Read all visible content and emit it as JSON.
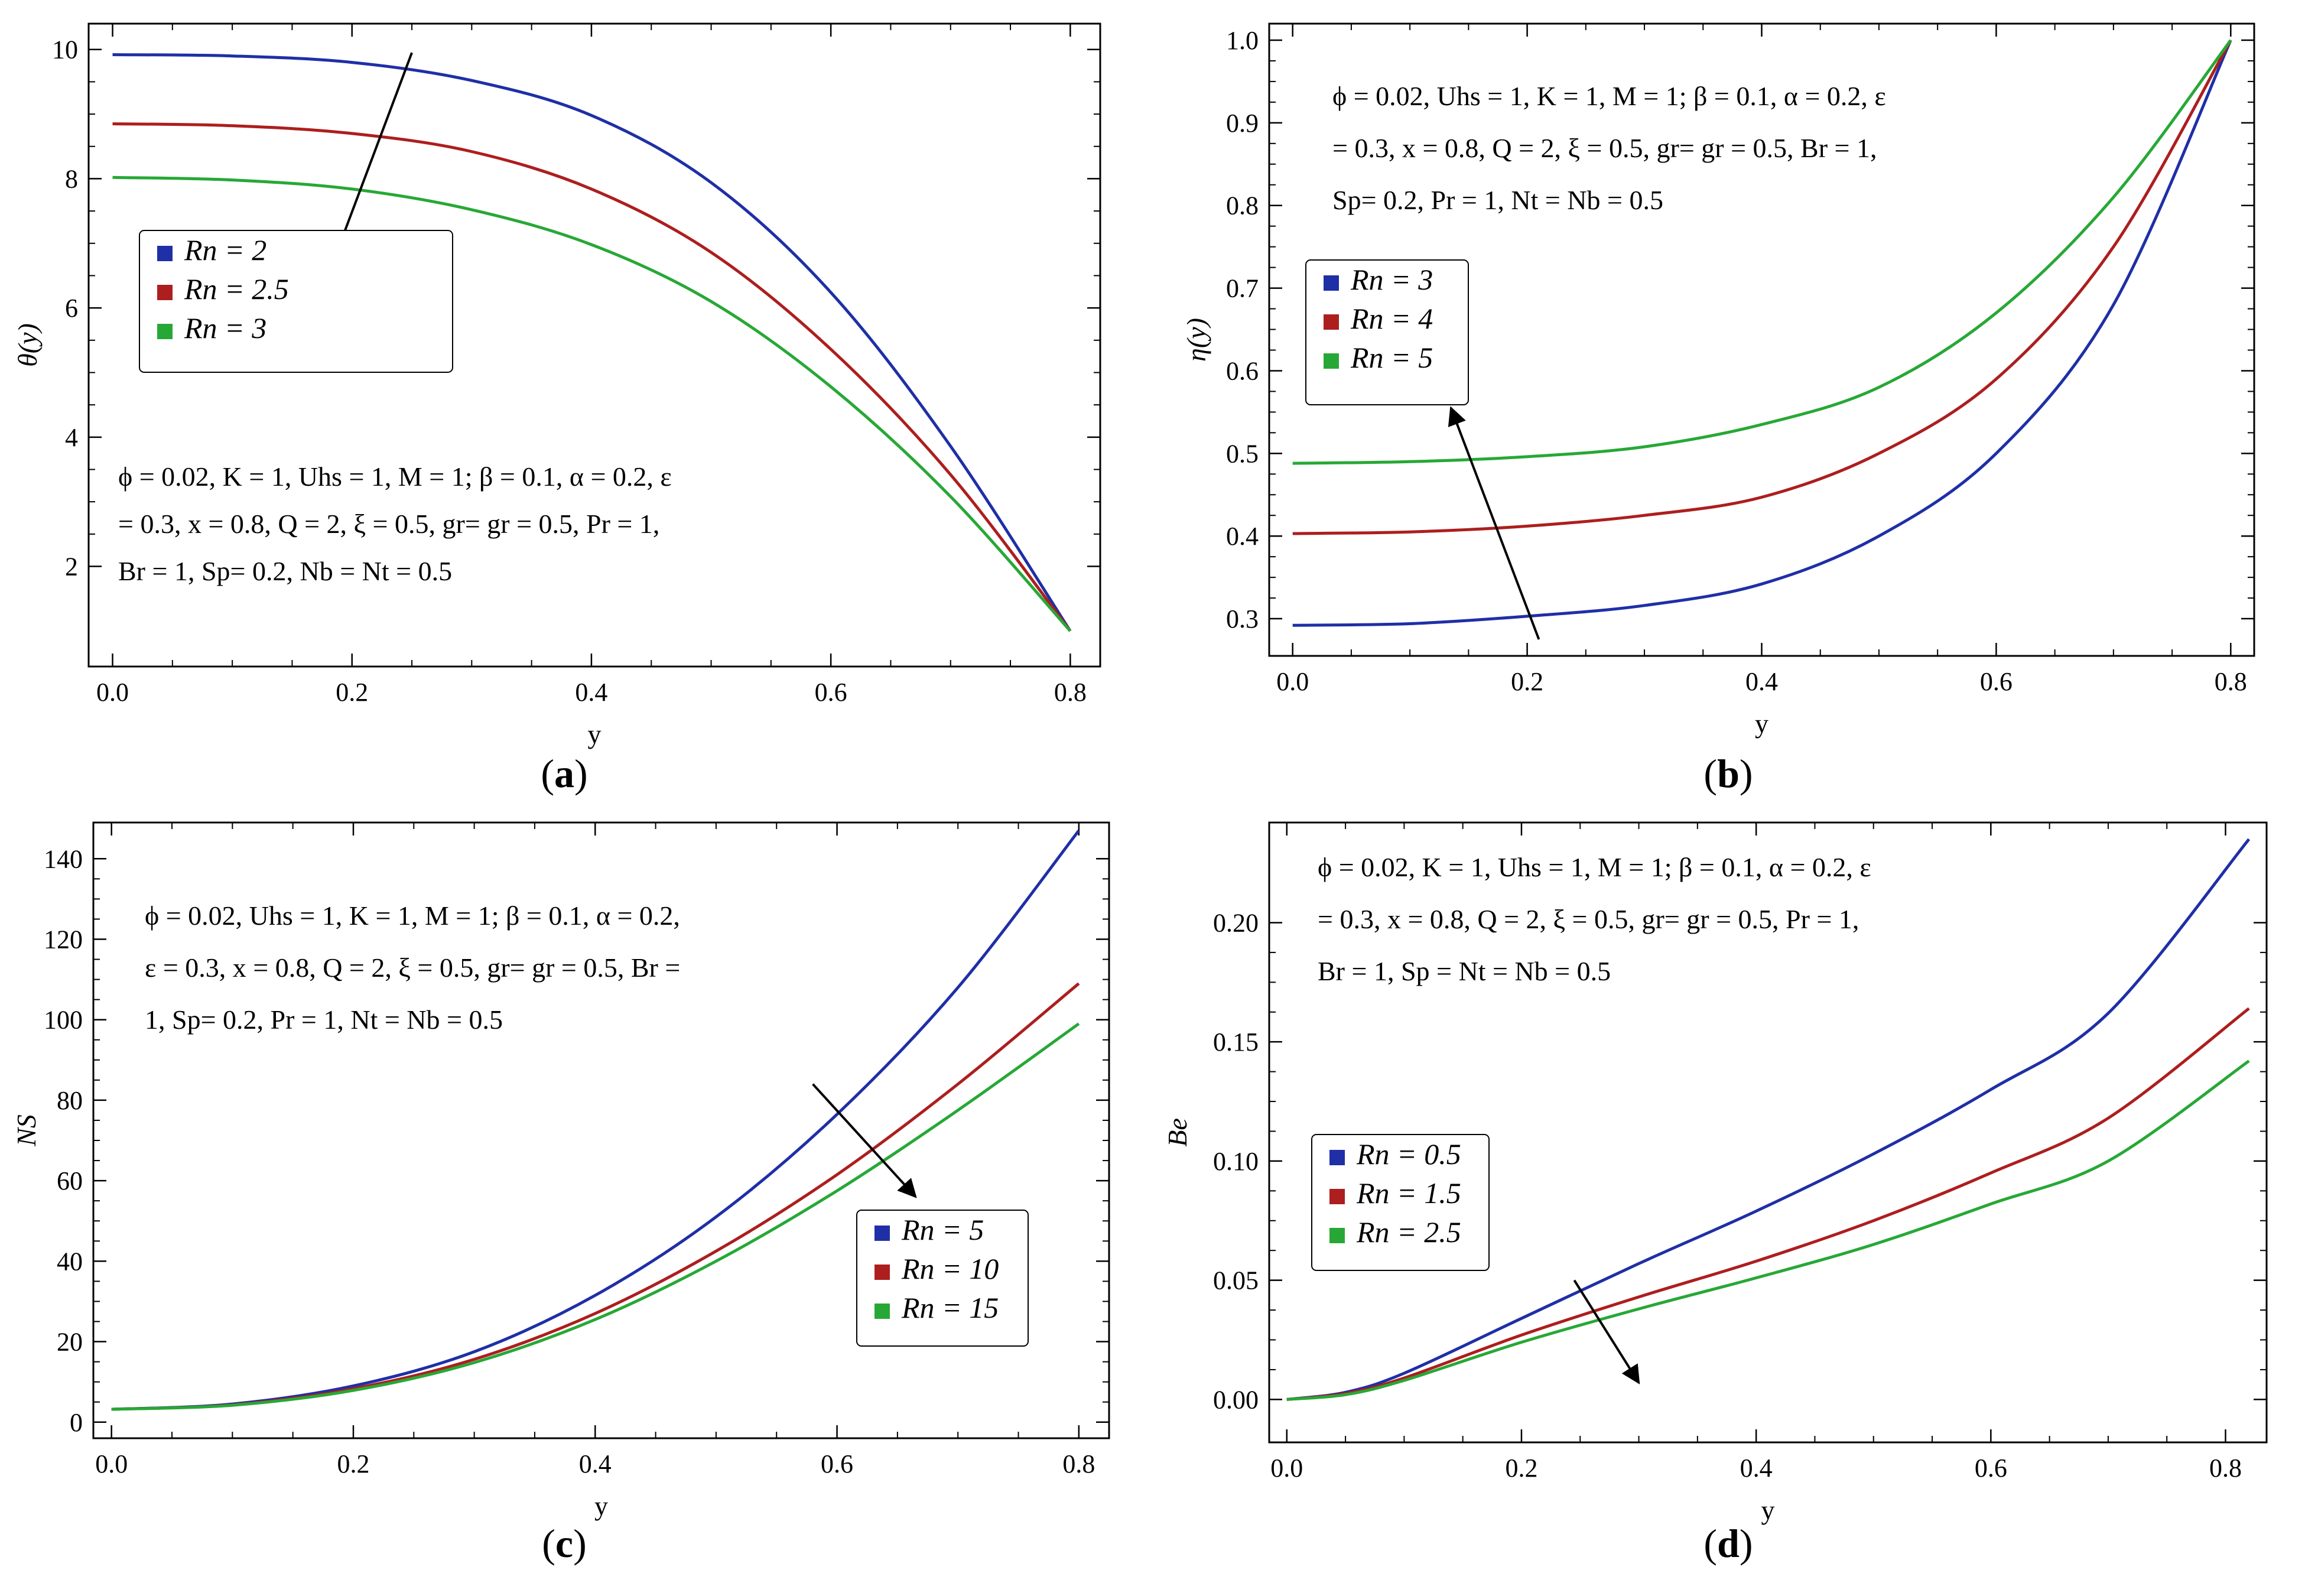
{
  "figure": {
    "colors": {
      "blue": "#1f2fa6",
      "red": "#ad1e1e",
      "green": "#27a836"
    }
  },
  "chart_data": [
    {
      "type": "line",
      "caption": "a",
      "xlabel": "y",
      "ylabel": "θ(y)",
      "xlim": [
        -0.02,
        0.825
      ],
      "ylim": [
        0.45,
        10.4
      ],
      "xticks": [
        0.0,
        0.2,
        0.4,
        0.6,
        0.8
      ],
      "xtick_labels": [
        "0.0",
        "0.2",
        "0.4",
        "0.6",
        "0.8"
      ],
      "yticks": [
        2,
        4,
        6,
        8,
        10
      ],
      "ytick_labels": [
        "2",
        "4",
        "6",
        "8",
        "10"
      ],
      "params": [
        "ϕ = 0.02, K = 1, Uhs = 1, M = 1; β = 0.1, α = 0.2, ε",
        "= 0.3, x = 0.8, Q = 2, ξ = 0.5, gr= gr = 0.5, Pr = 1,",
        "Br = 1, Sp= 0.2, Nb = Nt = 0.5"
      ],
      "legend_position": "upper-left",
      "series": [
        {
          "name": "Rn = 2",
          "color": "blue",
          "x": [
            0,
            0.1,
            0.2,
            0.3,
            0.4,
            0.5,
            0.6,
            0.7,
            0.8
          ],
          "y": [
            9.92,
            9.9,
            9.8,
            9.52,
            8.98,
            7.94,
            6.24,
            3.86,
            1.0
          ]
        },
        {
          "name": "Rn = 2.5",
          "color": "red",
          "x": [
            0,
            0.1,
            0.2,
            0.3,
            0.4,
            0.5,
            0.6,
            0.7,
            0.8
          ],
          "y": [
            8.85,
            8.82,
            8.7,
            8.42,
            7.84,
            6.86,
            5.36,
            3.42,
            1.0
          ]
        },
        {
          "name": "Rn = 3",
          "color": "green",
          "x": [
            0,
            0.1,
            0.2,
            0.3,
            0.4,
            0.5,
            0.6,
            0.7,
            0.8
          ],
          "y": [
            8.02,
            7.98,
            7.84,
            7.52,
            6.98,
            6.1,
            4.78,
            3.08,
            1.0
          ]
        }
      ],
      "arrow": {
        "from": [
          0.25,
          9.95
        ],
        "to": [
          0.18,
          6.5
        ]
      }
    },
    {
      "type": "line",
      "caption": "b",
      "xlabel": "y",
      "ylabel": "η(y)",
      "xlim": [
        -0.02,
        0.82
      ],
      "ylim": [
        0.255,
        1.02
      ],
      "xticks": [
        0.0,
        0.2,
        0.4,
        0.6,
        0.8
      ],
      "xtick_labels": [
        "0.0",
        "0.2",
        "0.4",
        "0.6",
        "0.8"
      ],
      "yticks": [
        0.3,
        0.4,
        0.5,
        0.6,
        0.7,
        0.8,
        0.9,
        1.0
      ],
      "ytick_labels": [
        "0.3",
        "0.4",
        "0.5",
        "0.6",
        "0.7",
        "0.8",
        "0.9",
        "1.0"
      ],
      "params": [
        "ϕ = 0.02, Uhs = 1, K = 1, M = 1; β = 0.1, α = 0.2, ε",
        "= 0.3, x = 0.8, Q = 2, ξ = 0.5, gr= gr = 0.5, Br = 1,",
        "Sp= 0.2, Pr = 1, Nt = Nb = 0.5"
      ],
      "legend_position": "center-left",
      "series": [
        {
          "name": "Rn = 3",
          "color": "blue",
          "x": [
            0,
            0.1,
            0.2,
            0.3,
            0.4,
            0.5,
            0.6,
            0.7,
            0.8
          ],
          "y": [
            0.292,
            0.294,
            0.303,
            0.316,
            0.342,
            0.4,
            0.5,
            0.68,
            1.0
          ]
        },
        {
          "name": "Rn = 4",
          "color": "red",
          "x": [
            0,
            0.1,
            0.2,
            0.3,
            0.4,
            0.5,
            0.6,
            0.7,
            0.8
          ],
          "y": [
            0.403,
            0.405,
            0.412,
            0.425,
            0.447,
            0.5,
            0.59,
            0.75,
            1.0
          ]
        },
        {
          "name": "Rn = 5",
          "color": "green",
          "x": [
            0,
            0.1,
            0.2,
            0.3,
            0.4,
            0.5,
            0.6,
            0.7,
            0.8
          ],
          "y": [
            0.488,
            0.49,
            0.496,
            0.508,
            0.535,
            0.58,
            0.67,
            0.81,
            1.0
          ]
        }
      ],
      "arrow": {
        "from": [
          0.21,
          0.275
        ],
        "to": [
          0.135,
          0.555
        ]
      }
    },
    {
      "type": "line",
      "caption": "c",
      "xlabel": "y",
      "ylabel": "NS",
      "xlim": [
        -0.015,
        0.825
      ],
      "ylim": [
        -4,
        149
      ],
      "xticks": [
        0.0,
        0.2,
        0.4,
        0.6,
        0.8
      ],
      "xtick_labels": [
        "0.0",
        "0.2",
        "0.4",
        "0.6",
        "0.8"
      ],
      "yticks": [
        0,
        20,
        40,
        60,
        80,
        100,
        120,
        140
      ],
      "ytick_labels": [
        "0",
        "20",
        "40",
        "60",
        "80",
        "100",
        "120",
        "140"
      ],
      "params": [
        "ϕ = 0.02, Uhs = 1, K = 1, M = 1; β = 0.1, α = 0.2,",
        "ε = 0.3, x = 0.8, Q = 2, ξ = 0.5, gr= gr = 0.5, Br =",
        "1, Sp= 0.2, Pr = 1, Nt = Nb = 0.5"
      ],
      "legend_position": "lower-right",
      "series": [
        {
          "name": "Rn = 5",
          "color": "blue",
          "x": [
            0,
            0.1,
            0.2,
            0.3,
            0.4,
            0.5,
            0.6,
            0.7,
            0.8
          ],
          "y": [
            3.2,
            4.5,
            9.0,
            17.5,
            31.5,
            51.0,
            76.5,
            108.0,
            147.0
          ]
        },
        {
          "name": "Rn = 10",
          "color": "red",
          "x": [
            0,
            0.1,
            0.2,
            0.3,
            0.4,
            0.5,
            0.6,
            0.7,
            0.8
          ],
          "y": [
            3.2,
            4.3,
            8.3,
            15.6,
            27.0,
            42.5,
            61.5,
            84.0,
            109.0
          ]
        },
        {
          "name": "Rn = 15",
          "color": "green",
          "x": [
            0,
            0.1,
            0.2,
            0.3,
            0.4,
            0.5,
            0.6,
            0.7,
            0.8
          ],
          "y": [
            3.2,
            4.2,
            7.9,
            14.8,
            25.5,
            40.0,
            57.5,
            77.5,
            99.0
          ]
        }
      ],
      "arrow": {
        "from": [
          0.58,
          84
        ],
        "to": [
          0.665,
          56
        ]
      }
    },
    {
      "type": "line",
      "caption": "d",
      "xlabel": "y",
      "ylabel": "Be",
      "xlim": [
        -0.015,
        0.835
      ],
      "ylim": [
        -0.018,
        0.242
      ],
      "xticks": [
        0.0,
        0.2,
        0.4,
        0.6,
        0.8
      ],
      "xtick_labels": [
        "0.0",
        "0.2",
        "0.4",
        "0.6",
        "0.8"
      ],
      "yticks": [
        0.0,
        0.05,
        0.1,
        0.15,
        0.2
      ],
      "ytick_labels": [
        "0.00",
        "0.05",
        "0.10",
        "0.15",
        "0.20"
      ],
      "params": [
        "ϕ = 0.02, K = 1, Uhs = 1, M = 1; β = 0.1, α = 0.2, ε",
        "= 0.3, x = 0.8, Q = 2, ξ = 0.5, gr= gr = 0.5, Pr = 1,",
        "Br = 1, Sp = Nt = Nb = 0.5"
      ],
      "legend_position": "center-left",
      "series": [
        {
          "name": "Rn = 0.5",
          "color": "blue",
          "x": [
            0,
            0.05,
            0.1,
            0.2,
            0.3,
            0.4,
            0.5,
            0.6,
            0.7,
            0.82
          ],
          "y": [
            0,
            0.003,
            0.011,
            0.034,
            0.057,
            0.079,
            0.103,
            0.13,
            0.162,
            0.235
          ]
        },
        {
          "name": "Rn = 1.5",
          "color": "red",
          "x": [
            0,
            0.05,
            0.1,
            0.2,
            0.3,
            0.4,
            0.5,
            0.6,
            0.7,
            0.82
          ],
          "y": [
            0,
            0.0025,
            0.009,
            0.027,
            0.043,
            0.058,
            0.075,
            0.095,
            0.118,
            0.164
          ]
        },
        {
          "name": "Rn = 2.5",
          "color": "green",
          "x": [
            0,
            0.05,
            0.1,
            0.2,
            0.3,
            0.4,
            0.5,
            0.6,
            0.7,
            0.82
          ],
          "y": [
            0,
            0.002,
            0.008,
            0.024,
            0.038,
            0.051,
            0.065,
            0.082,
            0.1,
            0.142
          ]
        }
      ],
      "arrow": {
        "from": [
          0.245,
          0.05
        ],
        "to": [
          0.3,
          0.007
        ]
      }
    }
  ]
}
